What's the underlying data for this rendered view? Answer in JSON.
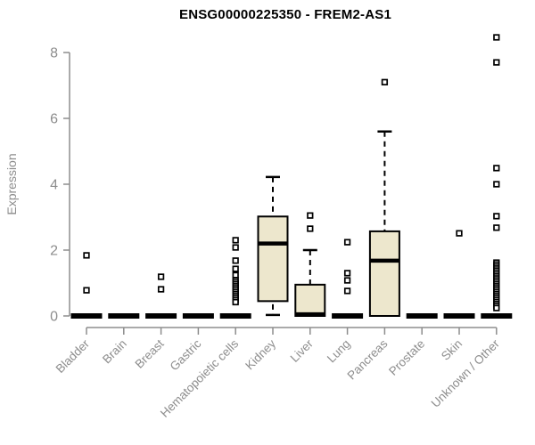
{
  "chart_data": {
    "type": "boxplot",
    "title": "ENSG00000225350 - FREM2-AS1",
    "ylabel": "Expression",
    "xlabel": "",
    "ylim": [
      0,
      8.5
    ],
    "yticks": [
      0,
      2,
      4,
      6,
      8
    ],
    "grid": false,
    "legend": "none",
    "colors": {
      "box_fill": "#ede7cd",
      "box_stroke": "#000000",
      "median_color": "#000000",
      "axis_color": "#8d8d8d",
      "tick_label_color": "#8d8d8d",
      "title_color": "#000000"
    },
    "categories": [
      "Bladder",
      "Brain",
      "Breast",
      "Gastric",
      "Hematopoietic cells",
      "Kidney",
      "Liver",
      "Lung",
      "Pancreas",
      "Prostate",
      "Skin",
      "Unknown / Other"
    ],
    "series": [
      {
        "name": "Bladder",
        "low": 0,
        "q1": 0,
        "median": 0,
        "q3": 0,
        "high": 0,
        "outliers": [
          1.84,
          0.78
        ]
      },
      {
        "name": "Brain",
        "low": 0,
        "q1": 0,
        "median": 0,
        "q3": 0,
        "high": 0,
        "outliers": []
      },
      {
        "name": "Breast",
        "low": 0,
        "q1": 0,
        "median": 0,
        "q3": 0,
        "high": 0,
        "outliers": [
          1.19,
          0.81
        ]
      },
      {
        "name": "Gastric",
        "low": 0,
        "q1": 0,
        "median": 0,
        "q3": 0,
        "high": 0,
        "outliers": []
      },
      {
        "name": "Hematopoietic cells",
        "low": 0,
        "q1": 0,
        "median": 0,
        "q3": 0,
        "high": 0,
        "outliers": [
          2.3,
          2.08,
          1.68,
          1.43,
          1.24,
          1.08,
          1.02,
          0.96,
          0.9,
          0.84,
          0.78,
          0.72,
          0.66,
          0.6,
          0.54,
          0.48,
          0.42
        ]
      },
      {
        "name": "Kidney",
        "low": 0.03,
        "q1": 0.45,
        "median": 2.2,
        "q3": 3.02,
        "high": 4.22,
        "outliers": []
      },
      {
        "name": "Liver",
        "low": 0,
        "q1": 0,
        "median": 0.05,
        "q3": 0.95,
        "high": 2.0,
        "outliers": [
          3.05,
          2.65
        ]
      },
      {
        "name": "Lung",
        "low": 0,
        "q1": 0,
        "median": 0,
        "q3": 0,
        "high": 0,
        "outliers": [
          2.24,
          1.3,
          1.08,
          0.76
        ]
      },
      {
        "name": "Pancreas",
        "low": 0,
        "q1": 0,
        "median": 1.68,
        "q3": 2.57,
        "high": 5.6,
        "outliers": [
          7.1
        ]
      },
      {
        "name": "Prostate",
        "low": 0,
        "q1": 0,
        "median": 0,
        "q3": 0,
        "high": 0,
        "outliers": []
      },
      {
        "name": "Skin",
        "low": 0,
        "q1": 0,
        "median": 0,
        "q3": 0,
        "high": 0,
        "outliers": [
          2.51
        ]
      },
      {
        "name": "Unknown / Other",
        "low": 0,
        "q1": 0,
        "median": 0,
        "q3": 0,
        "high": 0,
        "outliers": [
          8.46,
          7.7,
          4.49,
          4.0,
          3.03,
          2.68,
          1.62,
          1.56,
          1.5,
          1.44,
          1.38,
          1.32,
          1.26,
          1.2,
          1.14,
          1.08,
          1.02,
          0.96,
          0.9,
          0.84,
          0.78,
          0.72,
          0.66,
          0.6,
          0.54,
          0.48,
          0.42,
          0.36,
          0.3,
          0.24
        ]
      }
    ]
  }
}
